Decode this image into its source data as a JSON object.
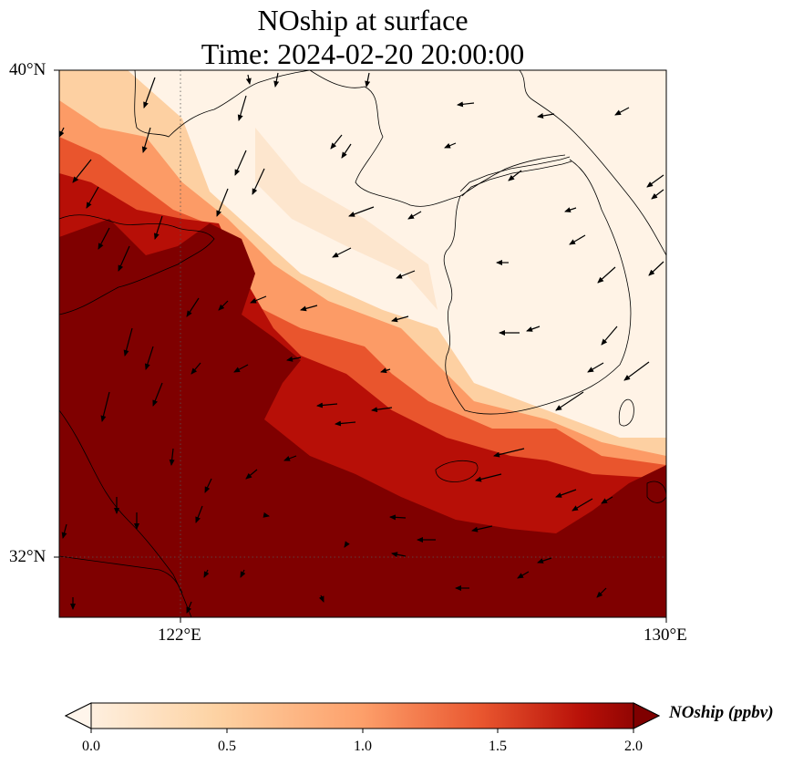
{
  "title": {
    "line1": "NOship at surface",
    "line2": "Time: 2024-02-20 20:00:00"
  },
  "map": {
    "lat_labels": [
      "40°N",
      "32°N"
    ],
    "lon_labels": [
      "122°E",
      "130°E"
    ],
    "extent": {
      "lon": [
        120,
        130
      ],
      "lat": [
        31,
        40
      ]
    }
  },
  "colorbar": {
    "label": "NOship (ppbv)",
    "ticks": [
      "0.0",
      "0.5",
      "1.0",
      "1.5",
      "2.0"
    ],
    "range": [
      0,
      2
    ],
    "colors": [
      "#fff5eb",
      "#fdd3a4",
      "#fd9f6a",
      "#e9562f",
      "#b81008",
      "#7f0000"
    ]
  }
}
